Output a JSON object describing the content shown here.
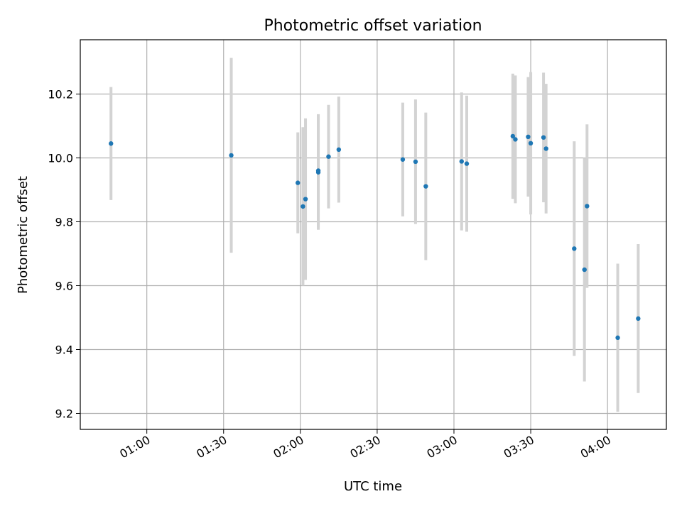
{
  "chart_data": {
    "type": "scatter",
    "title": "Photometric offset variation",
    "xlabel": "UTC time",
    "ylabel": "Photometric offset",
    "x_unit": "UTC time (HH:MM)",
    "xlim": [
      "00:34",
      "04:23"
    ],
    "ylim": [
      9.15,
      10.37
    ],
    "x_ticks": [
      "01:00",
      "01:30",
      "02:00",
      "02:30",
      "03:00",
      "03:30",
      "04:00"
    ],
    "y_ticks": [
      9.2,
      9.4,
      9.6,
      9.8,
      10.0,
      10.2
    ],
    "grid": true,
    "legend": "none",
    "point_color": "#1f77b4",
    "errorbar_color": "#d3d3d3",
    "series": [
      {
        "points": [
          {
            "x": "00:46",
            "y": 10.045,
            "yerr": 0.177
          },
          {
            "x": "01:33",
            "y": 10.008,
            "yerr": 0.305
          },
          {
            "x": "01:59",
            "y": 9.922,
            "yerr": 0.158
          },
          {
            "x": "02:01",
            "y": 9.848,
            "yerr": 0.248
          },
          {
            "x": "02:02",
            "y": 9.871,
            "yerr": 0.253
          },
          {
            "x": "02:07",
            "y": 9.955,
            "yerr": 0.18
          },
          {
            "x": "02:07",
            "y": 9.96,
            "yerr": 0.177
          },
          {
            "x": "02:11",
            "y": 10.004,
            "yerr": 0.162
          },
          {
            "x": "02:15",
            "y": 10.026,
            "yerr": 0.166
          },
          {
            "x": "02:40",
            "y": 9.995,
            "yerr": 0.178
          },
          {
            "x": "02:45",
            "y": 9.988,
            "yerr": 0.195
          },
          {
            "x": "02:49",
            "y": 9.911,
            "yerr": 0.231
          },
          {
            "x": "03:03",
            "y": 9.989,
            "yerr": 0.216
          },
          {
            "x": "03:05",
            "y": 9.982,
            "yerr": 0.213
          },
          {
            "x": "03:23",
            "y": 10.068,
            "yerr": 0.196
          },
          {
            "x": "03:24",
            "y": 10.058,
            "yerr": 0.2
          },
          {
            "x": "03:29",
            "y": 10.066,
            "yerr": 0.187
          },
          {
            "x": "03:30",
            "y": 10.046,
            "yerr": 0.223
          },
          {
            "x": "03:35",
            "y": 10.064,
            "yerr": 0.203
          },
          {
            "x": "03:36",
            "y": 10.029,
            "yerr": 0.203
          },
          {
            "x": "03:47",
            "y": 9.716,
            "yerr": 0.336
          },
          {
            "x": "03:51",
            "y": 9.65,
            "yerr": 0.35
          },
          {
            "x": "03:52",
            "y": 9.849,
            "yerr": 0.256
          },
          {
            "x": "04:04",
            "y": 9.437,
            "yerr": 0.232
          },
          {
            "x": "04:12",
            "y": 9.497,
            "yerr": 0.233
          }
        ]
      }
    ]
  }
}
